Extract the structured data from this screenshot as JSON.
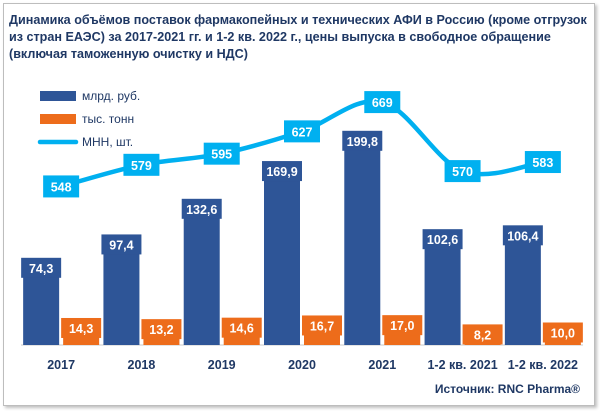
{
  "chart_data": {
    "type": "bar",
    "title": "Динамика объёмов поставок фармакопейных и технических АФИ в Россию (кроме отгрузок из стран ЕАЭС) за 2017-2021 гг. и 1-2 кв. 2022 г., цены выпуска в свободное обращение (включая таможенную очистку и НДС)",
    "categories": [
      "2017",
      "2018",
      "2019",
      "2020",
      "2021",
      "1-2 кв. 2021",
      "1-2 кв. 2022"
    ],
    "series": [
      {
        "name": "млрд. руб.",
        "kind": "bar",
        "color": "#2e5597",
        "values": [
          74.3,
          97.4,
          132.6,
          169.9,
          199.8,
          102.6,
          106.4
        ],
        "labels": [
          "74,3",
          "97,4",
          "132,6",
          "169,9",
          "199,8",
          "102,6",
          "106,4"
        ]
      },
      {
        "name": "тыс. тонн",
        "kind": "bar",
        "color": "#ed6c1b",
        "values": [
          14.3,
          13.2,
          14.6,
          16.7,
          17.0,
          8.2,
          10.0
        ],
        "labels": [
          "14,3",
          "13,2",
          "14,6",
          "16,7",
          "17,0",
          "8,2",
          "10,0"
        ]
      },
      {
        "name": "МНН, шт.",
        "kind": "line",
        "color": "#00b0f0",
        "values": [
          548,
          579,
          595,
          627,
          669,
          570,
          583
        ],
        "labels": [
          "548",
          "579",
          "595",
          "627",
          "669",
          "570",
          "583"
        ]
      }
    ],
    "legend_position": "top-left",
    "grid": false
  },
  "source": "Источник: RNC Pharma®"
}
